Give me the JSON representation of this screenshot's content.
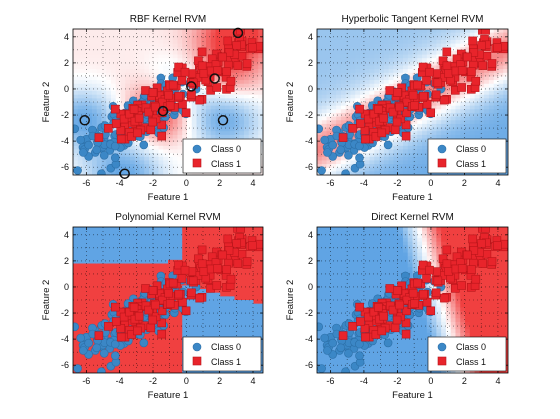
{
  "colors": {
    "class0": "#3b87c6",
    "class0_edge": "#2c6fa7",
    "class1": "#e8242b",
    "class1_edge": "#b8141a",
    "region_blue": "#6aa8e6",
    "region_red": "#f04040",
    "support_vector_edge": "#111111"
  },
  "chart_data": [
    {
      "type": "scatter",
      "kernel": "rbf",
      "title": "RBF Kernel RVM",
      "xlabel": "Feature 1",
      "ylabel": "Feature 2",
      "xlim": [
        -6.8,
        4.6
      ],
      "ylim": [
        -6.6,
        4.6
      ],
      "xticks": [
        -6,
        -4,
        -2,
        0,
        2,
        4
      ],
      "yticks": [
        -6,
        -4,
        -2,
        0,
        2,
        4
      ],
      "grid": true,
      "legend_position": "bottom-right",
      "series": [
        {
          "name": "Class 0",
          "marker": "circle"
        },
        {
          "name": "Class 1",
          "marker": "square"
        }
      ],
      "relevance_vectors": [
        [
          3.1,
          4.3
        ],
        [
          1.7,
          0.8
        ],
        [
          0.3,
          0.2
        ],
        [
          -1.4,
          -1.7
        ],
        [
          -6.1,
          -2.4
        ],
        [
          -3.7,
          -6.5
        ],
        [
          2.2,
          -2.4
        ]
      ]
    },
    {
      "type": "scatter",
      "kernel": "tanh",
      "title": "Hyperbolic Tangent Kernel RVM",
      "xlabel": "Feature 1",
      "ylabel": "Feature 2",
      "xlim": [
        -6.8,
        4.6
      ],
      "ylim": [
        -6.6,
        4.6
      ],
      "xticks": [
        -6,
        -4,
        -2,
        0,
        2,
        4
      ],
      "yticks": [
        -6,
        -4,
        -2,
        0,
        2,
        4
      ],
      "grid": true,
      "legend_position": "bottom-right",
      "series": [
        {
          "name": "Class 0",
          "marker": "circle"
        },
        {
          "name": "Class 1",
          "marker": "square"
        }
      ]
    },
    {
      "type": "scatter",
      "kernel": "poly",
      "title": "Polynomial Kernel RVM",
      "xlabel": "Feature 1",
      "ylabel": "Feature 2",
      "xlim": [
        -6.8,
        4.6
      ],
      "ylim": [
        -6.6,
        4.6
      ],
      "xticks": [
        -6,
        -4,
        -2,
        0,
        2,
        4
      ],
      "yticks": [
        -6,
        -4,
        -2,
        0,
        2,
        4
      ],
      "grid": true,
      "legend_position": "bottom-right",
      "series": [
        {
          "name": "Class 0",
          "marker": "circle"
        },
        {
          "name": "Class 1",
          "marker": "square"
        }
      ]
    },
    {
      "type": "scatter",
      "kernel": "linear",
      "title": "Direct Kernel RVM",
      "xlabel": "Feature 1",
      "ylabel": "Feature 2",
      "xlim": [
        -6.8,
        4.6
      ],
      "ylim": [
        -6.6,
        4.6
      ],
      "xticks": [
        -6,
        -4,
        -2,
        0,
        2,
        4
      ],
      "yticks": [
        -6,
        -4,
        -2,
        0,
        2,
        4
      ],
      "grid": true,
      "legend_position": "bottom-right",
      "series": [
        {
          "name": "Class 0",
          "marker": "circle"
        },
        {
          "name": "Class 1",
          "marker": "square"
        }
      ]
    }
  ]
}
